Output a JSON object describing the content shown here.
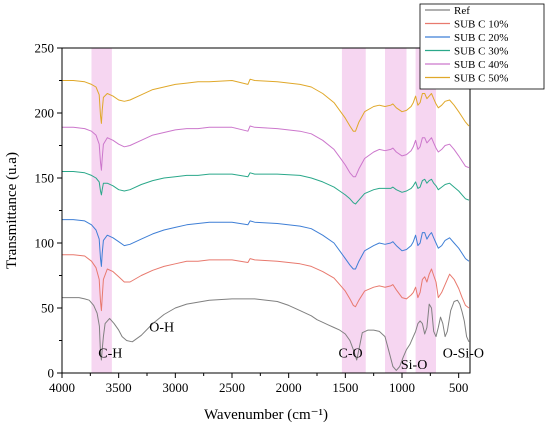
{
  "chart_data": {
    "type": "line",
    "xlabel": "Wavenumber (cm⁻¹)",
    "ylabel": "Transmittance (u.a)",
    "xlim": [
      4000,
      400
    ],
    "ylim": [
      0,
      250
    ],
    "x_reversed": true,
    "x_ticks": [
      4000,
      3500,
      3000,
      2500,
      2000,
      1500,
      1000,
      500
    ],
    "y_ticks": [
      0,
      50,
      100,
      150,
      200,
      250
    ],
    "legend_position": "top-right",
    "highlight_color": "#f6d6f1",
    "highlight_bands": [
      {
        "from": 3740,
        "to": 3560
      },
      {
        "from": 1530,
        "to": 1320
      },
      {
        "from": 1150,
        "to": 960
      },
      {
        "from": 880,
        "to": 700
      }
    ],
    "annotations": [
      {
        "text": "C-H",
        "x": 3680,
        "y": 12
      },
      {
        "text": "O-H",
        "x": 3230,
        "y": 32
      },
      {
        "text": "C-O",
        "x": 1560,
        "y": 12
      },
      {
        "text": "Si-O",
        "x": 1010,
        "y": 3
      },
      {
        "text": "O-Si-O",
        "x": 640,
        "y": 12
      }
    ],
    "series": [
      {
        "name": "Ref",
        "color": "#808080",
        "x": [
          4000,
          3950,
          3900,
          3850,
          3800,
          3760,
          3720,
          3690,
          3670,
          3660,
          3652,
          3645,
          3635,
          3620,
          3580,
          3540,
          3500,
          3470,
          3430,
          3380,
          3300,
          3200,
          3100,
          3000,
          2900,
          2700,
          2500,
          2300,
          2100,
          2000,
          1900,
          1800,
          1750,
          1700,
          1650,
          1600,
          1550,
          1500,
          1460,
          1430,
          1400,
          1380,
          1350,
          1300,
          1250,
          1200,
          1150,
          1110,
          1080,
          1050,
          1020,
          990,
          960,
          930,
          900,
          880,
          860,
          840,
          820,
          800,
          780,
          760,
          740,
          720,
          700,
          680,
          660,
          640,
          620,
          600,
          570,
          540,
          510,
          490,
          470,
          450,
          430,
          410
        ],
        "y": [
          58,
          58,
          58,
          58,
          57,
          56,
          52,
          46,
          36,
          15,
          10,
          18,
          28,
          38,
          42,
          38,
          33,
          28,
          25,
          24,
          29,
          38,
          45,
          50,
          53,
          56,
          57,
          57,
          55,
          52,
          48,
          44,
          41,
          39,
          37,
          35,
          33,
          30,
          25,
          18,
          10,
          18,
          31,
          33,
          33,
          32,
          28,
          15,
          5,
          2,
          5,
          12,
          18,
          22,
          28,
          32,
          38,
          40,
          38,
          30,
          35,
          53,
          50,
          32,
          28,
          35,
          43,
          38,
          28,
          32,
          48,
          55,
          56,
          53,
          47,
          40,
          28,
          24
        ]
      },
      {
        "name": "SUB C 10%",
        "color": "#e8796e",
        "x": [
          4000,
          3900,
          3800,
          3740,
          3700,
          3672,
          3660,
          3652,
          3645,
          3635,
          3600,
          3550,
          3500,
          3450,
          3400,
          3300,
          3200,
          3100,
          3000,
          2900,
          2800,
          2700,
          2500,
          2360,
          2340,
          2300,
          2100,
          1900,
          1800,
          1700,
          1600,
          1550,
          1500,
          1460,
          1430,
          1410,
          1380,
          1330,
          1250,
          1200,
          1150,
          1100,
          1080,
          1050,
          1000,
          960,
          920,
          900,
          880,
          860,
          840,
          820,
          800,
          780,
          760,
          740,
          720,
          700,
          680,
          650,
          620,
          580,
          540,
          500,
          470,
          440,
          410
        ],
        "y": [
          91,
          91,
          90,
          86,
          81,
          72,
          55,
          48,
          58,
          72,
          80,
          78,
          74,
          70,
          70,
          75,
          79,
          82,
          84,
          86,
          86,
          87,
          87,
          85,
          88,
          87,
          86,
          84,
          82,
          78,
          73,
          68,
          63,
          57,
          52,
          51,
          56,
          63,
          66,
          67,
          66,
          67,
          68,
          64,
          58,
          57,
          60,
          62,
          66,
          58,
          62,
          72,
          74,
          70,
          76,
          80,
          75,
          70,
          58,
          62,
          68,
          76,
          72,
          65,
          58,
          52,
          50
        ]
      },
      {
        "name": "SUB C 20%",
        "color": "#3f7fd6",
        "x": [
          4000,
          3900,
          3800,
          3740,
          3700,
          3672,
          3660,
          3652,
          3645,
          3635,
          3600,
          3550,
          3500,
          3450,
          3400,
          3300,
          3200,
          3100,
          3000,
          2900,
          2800,
          2700,
          2500,
          2360,
          2340,
          2300,
          2100,
          1900,
          1800,
          1700,
          1600,
          1550,
          1500,
          1460,
          1430,
          1410,
          1380,
          1330,
          1250,
          1200,
          1150,
          1100,
          1080,
          1050,
          1000,
          960,
          920,
          900,
          880,
          860,
          840,
          820,
          800,
          780,
          760,
          740,
          720,
          700,
          680,
          650,
          620,
          580,
          540,
          500,
          470,
          440,
          410
        ],
        "y": [
          118,
          118,
          117,
          114,
          110,
          103,
          88,
          82,
          92,
          102,
          106,
          104,
          101,
          98,
          99,
          103,
          107,
          110,
          112,
          114,
          115,
          116,
          116,
          114,
          117,
          116,
          115,
          113,
          111,
          106,
          100,
          94,
          88,
          83,
          80,
          80,
          86,
          94,
          98,
          100,
          99,
          100,
          101,
          98,
          94,
          95,
          98,
          101,
          106,
          98,
          100,
          108,
          108,
          103,
          106,
          108,
          104,
          100,
          96,
          98,
          102,
          104,
          100,
          96,
          92,
          88,
          86
        ]
      },
      {
        "name": "SUB C 30%",
        "color": "#2aa88a",
        "x": [
          4000,
          3900,
          3800,
          3740,
          3700,
          3672,
          3660,
          3652,
          3645,
          3635,
          3600,
          3550,
          3500,
          3450,
          3400,
          3300,
          3200,
          3100,
          3000,
          2900,
          2800,
          2700,
          2500,
          2360,
          2340,
          2300,
          2100,
          1900,
          1800,
          1700,
          1600,
          1550,
          1500,
          1460,
          1430,
          1410,
          1380,
          1330,
          1250,
          1200,
          1150,
          1100,
          1080,
          1050,
          1000,
          960,
          920,
          900,
          880,
          860,
          840,
          820,
          800,
          780,
          760,
          740,
          720,
          700,
          680,
          650,
          620,
          580,
          540,
          500,
          470,
          440,
          410
        ],
        "y": [
          155,
          155,
          154,
          152,
          150,
          147,
          140,
          137,
          141,
          146,
          146,
          144,
          141,
          140,
          141,
          145,
          148,
          150,
          151,
          152,
          152,
          153,
          153,
          151,
          154,
          153,
          153,
          152,
          150,
          147,
          143,
          140,
          137,
          134,
          131,
          130,
          133,
          138,
          141,
          142,
          142,
          142,
          143,
          141,
          139,
          140,
          142,
          144,
          147,
          142,
          143,
          148,
          149,
          146,
          148,
          149,
          146,
          144,
          141,
          143,
          145,
          146,
          143,
          140,
          137,
          134,
          133
        ]
      },
      {
        "name": "SUB C 40%",
        "color": "#cc77cc",
        "x": [
          4000,
          3900,
          3800,
          3740,
          3700,
          3672,
          3660,
          3652,
          3645,
          3635,
          3600,
          3550,
          3500,
          3450,
          3400,
          3300,
          3200,
          3100,
          3000,
          2900,
          2800,
          2700,
          2500,
          2360,
          2340,
          2300,
          2100,
          1900,
          1800,
          1700,
          1600,
          1550,
          1500,
          1460,
          1430,
          1410,
          1380,
          1330,
          1250,
          1200,
          1150,
          1100,
          1080,
          1050,
          1000,
          960,
          920,
          900,
          880,
          860,
          840,
          820,
          800,
          780,
          760,
          740,
          720,
          700,
          680,
          650,
          620,
          580,
          540,
          500,
          470,
          440,
          410
        ],
        "y": [
          189,
          189,
          188,
          186,
          183,
          176,
          162,
          156,
          165,
          176,
          181,
          179,
          176,
          174,
          175,
          179,
          183,
          185,
          187,
          188,
          188,
          189,
          189,
          186,
          190,
          189,
          188,
          186,
          184,
          179,
          172,
          166,
          160,
          154,
          151,
          151,
          157,
          165,
          170,
          172,
          171,
          172,
          173,
          170,
          167,
          168,
          171,
          174,
          179,
          172,
          174,
          181,
          181,
          177,
          179,
          181,
          177,
          173,
          170,
          172,
          175,
          176,
          172,
          167,
          163,
          159,
          158
        ]
      },
      {
        "name": "SUB C 50%",
        "color": "#e0a82a",
        "x": [
          4000,
          3900,
          3800,
          3740,
          3700,
          3672,
          3660,
          3652,
          3645,
          3635,
          3600,
          3550,
          3500,
          3450,
          3400,
          3300,
          3200,
          3100,
          3000,
          2900,
          2800,
          2700,
          2500,
          2360,
          2340,
          2300,
          2100,
          1900,
          1800,
          1700,
          1600,
          1550,
          1500,
          1460,
          1430,
          1410,
          1380,
          1330,
          1250,
          1200,
          1150,
          1100,
          1080,
          1050,
          1000,
          960,
          920,
          900,
          880,
          860,
          840,
          820,
          800,
          780,
          760,
          740,
          720,
          700,
          680,
          650,
          620,
          580,
          540,
          500,
          470,
          440,
          410
        ],
        "y": [
          225,
          225,
          224,
          222,
          220,
          214,
          198,
          192,
          202,
          212,
          215,
          213,
          210,
          209,
          210,
          214,
          218,
          220,
          222,
          223,
          224,
          224,
          225,
          222,
          226,
          225,
          224,
          222,
          220,
          215,
          208,
          202,
          196,
          190,
          186,
          186,
          193,
          201,
          205,
          206,
          205,
          206,
          207,
          204,
          201,
          202,
          205,
          208,
          213,
          206,
          208,
          215,
          215,
          211,
          213,
          215,
          211,
          207,
          204,
          206,
          209,
          210,
          206,
          201,
          197,
          193,
          190
        ]
      }
    ]
  }
}
